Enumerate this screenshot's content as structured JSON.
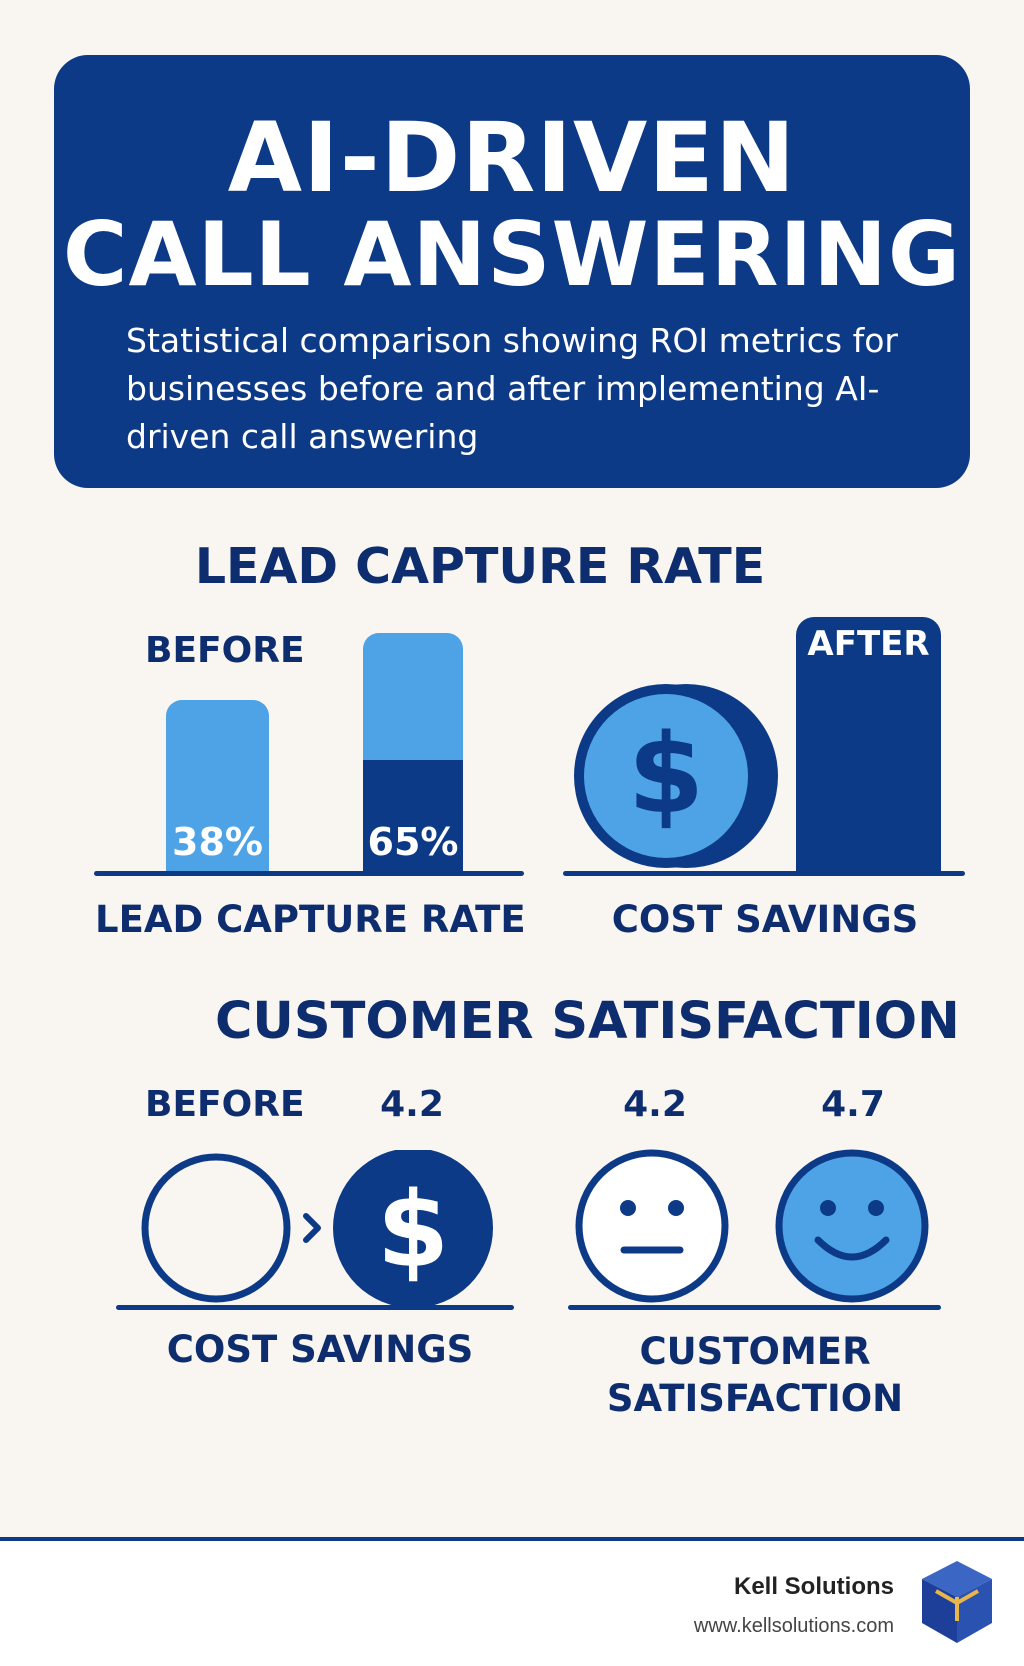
{
  "header": {
    "title_line1": "AI-DRIVEN",
    "title_line2": "CALL ANSWERING",
    "subtitle": "Statistical comparison showing ROI metrics for businesses before and after implementing AI-driven call answering"
  },
  "lead_section": {
    "heading": "LEAD CAPTURE RATE",
    "before_label": "BEFORE",
    "before_value": "38%",
    "after_value": "65%",
    "caption": "LEAD CAPTURE RATE"
  },
  "cost_section_top": {
    "after_label": "AFTER",
    "caption": "COST SAVINGS",
    "icon": "dollar-coin-icon"
  },
  "customer_section": {
    "heading": "CUSTOMER SATISFACTION",
    "before_label": "BEFORE",
    "cost_value": "4.2",
    "cost_caption": "COST SAVINGS",
    "neutral_value": "4.2",
    "happy_value": "4.7",
    "caption_line1": "CUSTOMER",
    "caption_line2": "SATISFACTION"
  },
  "footer": {
    "brand": "Kell Solutions",
    "url": "www.kellsolutions.com",
    "logo": "cube-logo-icon"
  },
  "colors": {
    "navy": "#0d3a86",
    "light_blue": "#4da3e6",
    "background": "#f9f6f2"
  }
}
